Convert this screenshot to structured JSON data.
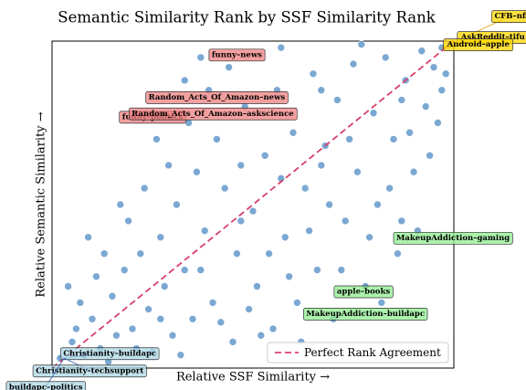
{
  "chart_data": {
    "type": "scatter",
    "title": "Semantic Similarity Rank by SSF Similarity Rank",
    "xlabel": "Relative SSF Similarity →",
    "ylabel": "Relative Semantic Similarity →",
    "xlim": [
      0,
      1
    ],
    "ylim": [
      0,
      1
    ],
    "color": "#4f8bc4",
    "x": [
      0.02,
      0.05,
      0.08,
      0.1,
      0.12,
      0.15,
      0.16,
      0.18,
      0.2,
      0.22,
      0.24,
      0.25,
      0.27,
      0.28,
      0.3,
      0.31,
      0.33,
      0.35,
      0.36,
      0.38,
      0.4,
      0.41,
      0.43,
      0.45,
      0.46,
      0.48,
      0.5,
      0.51,
      0.53,
      0.55,
      0.56,
      0.58,
      0.6,
      0.61,
      0.63,
      0.65,
      0.66,
      0.68,
      0.7,
      0.71,
      0.73,
      0.75,
      0.76,
      0.78,
      0.8,
      0.81,
      0.83,
      0.85,
      0.86,
      0.88,
      0.9,
      0.92,
      0.93,
      0.95,
      0.97,
      0.98,
      0.07,
      0.13,
      0.19,
      0.23,
      0.29,
      0.34,
      0.39,
      0.44,
      0.14,
      0.21,
      0.32,
      0.42,
      0.52,
      0.62,
      0.72,
      0.82,
      0.87,
      0.91,
      0.96,
      0.99,
      0.26,
      0.37,
      0.47,
      0.57,
      0.67,
      0.77,
      0.54,
      0.64,
      0.74,
      0.84,
      0.94,
      0.17,
      0.11,
      0.09,
      0.33,
      0.49,
      0.59,
      0.69,
      0.79,
      0.89,
      0.06,
      0.04,
      0.27,
      0.37,
      0.57,
      0.67,
      0.47,
      0.87,
      0.97
    ],
    "y": [
      0.03,
      0.08,
      0.04,
      0.15,
      0.06,
      0.22,
      0.1,
      0.3,
      0.12,
      0.35,
      0.18,
      0.05,
      0.4,
      0.25,
      0.1,
      0.5,
      0.3,
      0.15,
      0.6,
      0.42,
      0.2,
      0.7,
      0.55,
      0.08,
      0.35,
      0.8,
      0.48,
      0.25,
      0.65,
      0.12,
      0.85,
      0.4,
      0.72,
      0.2,
      0.55,
      0.9,
      0.3,
      0.68,
      0.15,
      0.82,
      0.45,
      0.93,
      0.6,
      0.25,
      0.78,
      0.5,
      0.95,
      0.7,
      0.35,
      0.88,
      0.6,
      0.97,
      0.8,
      0.92,
      0.98,
      0.9,
      0.2,
      0.35,
      0.45,
      0.55,
      0.62,
      0.75,
      0.85,
      0.92,
      0.02,
      0.06,
      0.04,
      0.14,
      0.1,
      0.08,
      0.3,
      0.2,
      0.45,
      0.42,
      0.75,
      0.99,
      0.7,
      0.95,
      0.62,
      0.98,
      0.85,
      0.99,
      0.35,
      0.42,
      0.7,
      0.55,
      0.65,
      0.5,
      0.28,
      0.4,
      0.88,
      0.18,
      0.28,
      0.5,
      0.4,
      0.72,
      0.12,
      0.25,
      0.15,
      0.3,
      0.58,
      0.62,
      0.45,
      0.82,
      0.85
    ],
    "reference_line": {
      "name": "Perfect Rank Agreement",
      "color": "#d6406a"
    },
    "legend": "lower right",
    "annotations": [
      {
        "text": "funny–politics",
        "x": 0.25,
        "y": 0.77,
        "color": "#f08080"
      },
      {
        "text": "funny–news",
        "x": 0.46,
        "y": 0.96,
        "color": "#f08080"
      },
      {
        "text": "Random_Acts_Of_Amazon–news",
        "x": 0.41,
        "y": 0.83,
        "color": "#f08080"
      },
      {
        "text": "Random_Acts_Of_Amazon–askscience",
        "x": 0.4,
        "y": 0.78,
        "color": "#f08080"
      },
      {
        "text": "MakeupAddiction–gaming",
        "x": 0.998,
        "y": 0.4,
        "color": "#90ee90"
      },
      {
        "text": "apple–books",
        "x": 0.775,
        "y": 0.236,
        "color": "#90ee90"
      },
      {
        "text": "MakeupAddiction–buildapc",
        "x": 0.78,
        "y": 0.168,
        "color": "#90ee90"
      },
      {
        "text": "CFB–nfl",
        "x": 0.97,
        "y": 0.98,
        "color": "#ffd700"
      },
      {
        "text": "AskReddit–tifu",
        "x": 0.97,
        "y": 0.98,
        "color": "#ffd700"
      },
      {
        "text": "Android–apple",
        "x": 0.97,
        "y": 0.98,
        "color": "#ffd700"
      },
      {
        "text": "Christianity–buildapc",
        "x": 0.03,
        "y": 0.03,
        "color": "#add8e6"
      },
      {
        "text": "Christianity–techsupport",
        "x": 0.03,
        "y": 0.03,
        "color": "#add8e6"
      },
      {
        "text": "buildapc–politics",
        "x": 0.03,
        "y": 0.03,
        "color": "#add8e6"
      }
    ]
  }
}
